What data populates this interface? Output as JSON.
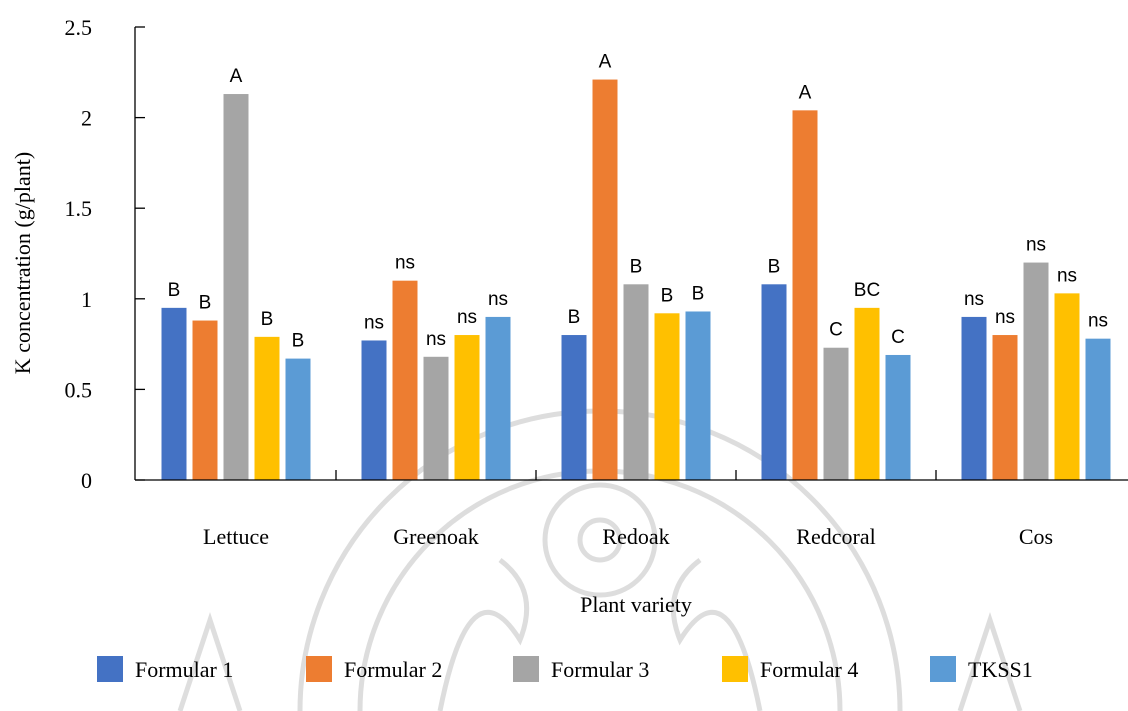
{
  "chart_data": {
    "type": "bar",
    "title": "",
    "xlabel": "Plant variety",
    "ylabel": "K concentration (g/plant)",
    "ylim": [
      0,
      2.5
    ],
    "yticks": [
      "0",
      "0.5",
      "1",
      "1.5",
      "2",
      "2.5"
    ],
    "categories": [
      "Lettuce",
      "Greenoak",
      "Redoak",
      "Redcoral",
      "Cos"
    ],
    "legend_position": "bottom",
    "grid": false,
    "series": [
      {
        "name": "Formular 1",
        "color": "#4472C4",
        "values": [
          0.95,
          0.77,
          0.8,
          1.08,
          0.9
        ],
        "labels": [
          "B",
          "ns",
          "B",
          "B",
          "ns"
        ]
      },
      {
        "name": "Formular 2",
        "color": "#ED7D31",
        "values": [
          0.88,
          1.1,
          2.21,
          2.04,
          0.8
        ],
        "labels": [
          "B",
          "ns",
          "A",
          "A",
          "ns"
        ]
      },
      {
        "name": "Formular 3",
        "color": "#A5A5A5",
        "values": [
          2.13,
          0.68,
          1.08,
          0.73,
          1.2
        ],
        "labels": [
          "A",
          "ns",
          "B",
          "C",
          "ns"
        ]
      },
      {
        "name": "Formular 4",
        "color": "#FFC000",
        "values": [
          0.79,
          0.8,
          0.92,
          0.95,
          1.03
        ],
        "labels": [
          "B",
          "ns",
          "B",
          "BC",
          "ns"
        ]
      },
      {
        "name": "TKSS1",
        "color": "#5B9BD5",
        "values": [
          0.67,
          0.9,
          0.93,
          0.69,
          0.78
        ],
        "labels": [
          "B",
          "ns",
          "B",
          "C",
          "ns"
        ]
      }
    ]
  }
}
